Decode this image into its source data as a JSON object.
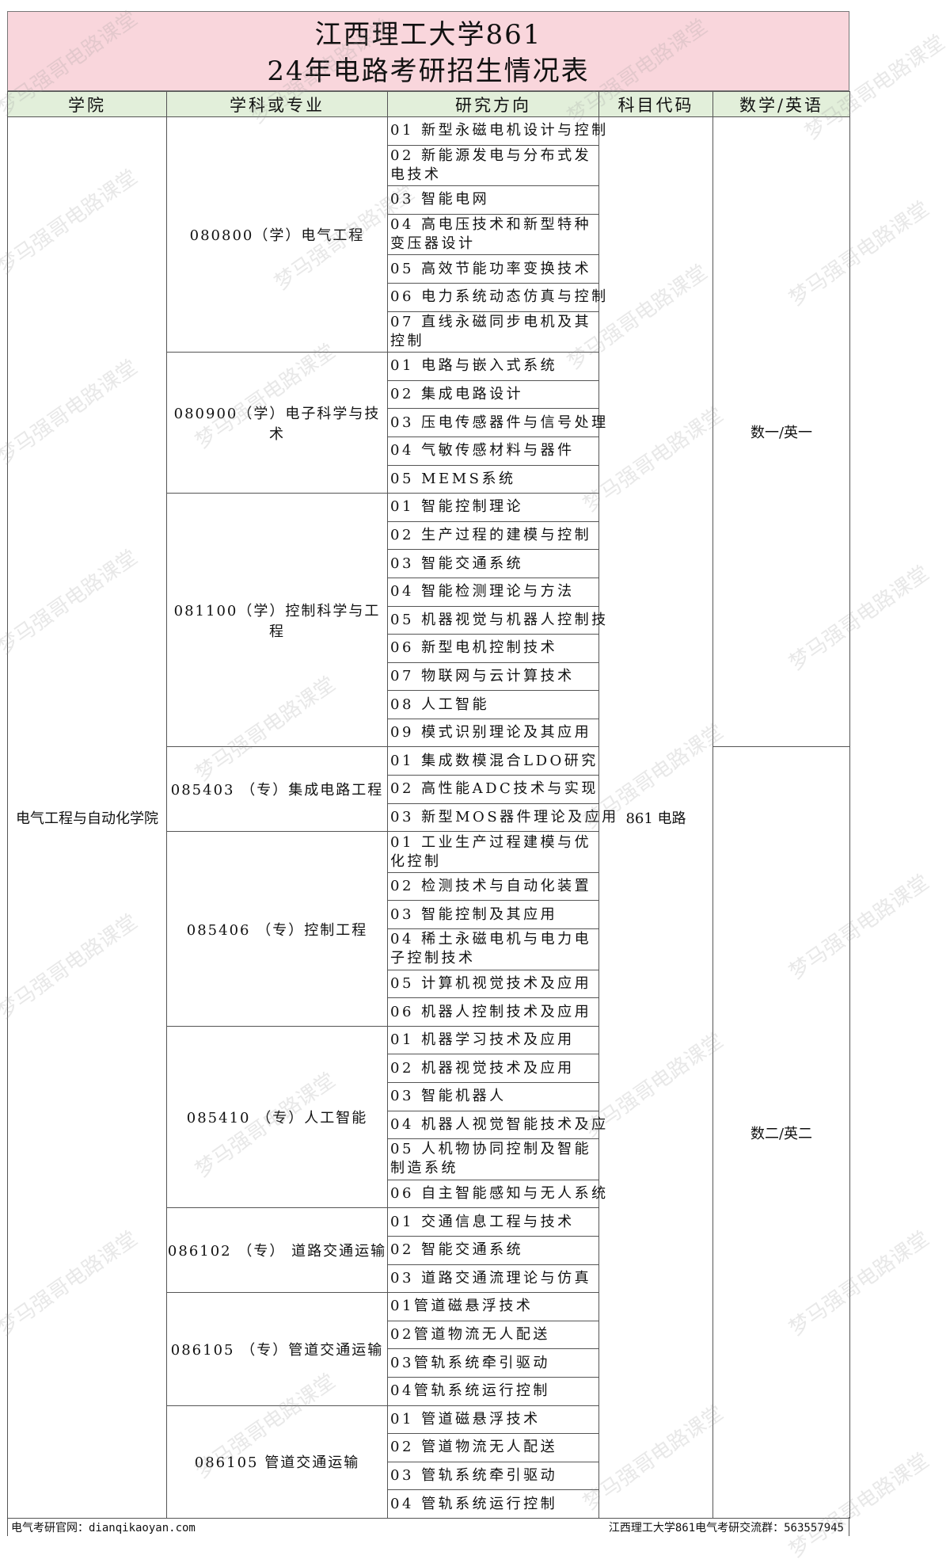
{
  "title": {
    "line1": "江西理工大学861",
    "line2": "24年电路考研招生情况表"
  },
  "header": [
    "学院",
    "学科或专业",
    "研究方向",
    "科目代码",
    "数学/英语"
  ],
  "college": "电气工程与自动化学院",
  "subject_code": "861 电路",
  "math_english": [
    "数一/英一",
    "数二/英二"
  ],
  "majors": [
    {
      "name": "080800（学）电气工程",
      "directions": [
        "01 新型永磁电机设计与控制",
        "02 新能源发电与分布式发电技术",
        "03 智能电网",
        "04 高电压技术和新型特种变压器设计",
        "05 高效节能功率变换技术",
        "06 电力系统动态仿真与控制",
        "07 直线永磁同步电机及其控制"
      ]
    },
    {
      "name": "080900（学）电子科学与技术",
      "directions": [
        "01 电路与嵌入式系统",
        "02 集成电路设计",
        "03 压电传感器件与信号处理",
        "04 气敏传感材料与器件",
        "05 MEMS系统"
      ]
    },
    {
      "name": "081100（学）控制科学与工程",
      "directions": [
        "01 智能控制理论",
        "02 生产过程的建模与控制",
        "03 智能交通系统",
        "04 智能检测理论与方法",
        "05 机器视觉与机器人控制技",
        "06 新型电机控制技术",
        "07 物联网与云计算技术",
        "08 人工智能",
        "09 模式识别理论及其应用"
      ]
    },
    {
      "name": "085403 （专）集成电路工程",
      "directions": [
        "01 集成数模混合LDO研究",
        "02 高性能ADC技术与实现",
        "03 新型MOS器件理论及应用"
      ]
    },
    {
      "name": "085406 （专）控制工程",
      "directions": [
        "01 工业生产过程建模与优化控制",
        "02 检测技术与自动化装置",
        "03 智能控制及其应用",
        "04 稀土永磁电机与电力电子控制技术",
        "05 计算机视觉技术及应用",
        "06 机器人控制技术及应用"
      ]
    },
    {
      "name": "085410 （专）人工智能",
      "directions": [
        "01 机器学习技术及应用",
        "02 机器视觉技术及应用",
        "03 智能机器人",
        "04 机器人视觉智能技术及应",
        "05 人机物协同控制及智能制造系统",
        "06 自主智能感知与无人系统"
      ]
    },
    {
      "name": "086102 （专） 道路交通运输",
      "directions": [
        "01 交通信息工程与技术",
        "02 智能交通系统",
        "03 道路交通流理论与仿真"
      ]
    },
    {
      "name": "086105 （专）管道交通运输",
      "directions": [
        "01管道磁悬浮技术",
        "02管道物流无人配送",
        "03管轨系统牵引驱动",
        "04管轨系统运行控制"
      ]
    },
    {
      "name": "086105 管道交通运输",
      "directions": [
        "01 管道磁悬浮技术",
        "02 管道物流无人配送",
        "03 管轨系统牵引驱动",
        "04 管轨系统运行控制"
      ]
    }
  ],
  "footer": {
    "left": "电气考研官网：dianqikaoyan.com",
    "right": "江西理工大学861电气考研交流群：563557945"
  },
  "watermark": "梦马强哥电路课堂",
  "colors": {
    "title_bg": "#f9d6dc",
    "header_bg": "#e2efda"
  }
}
